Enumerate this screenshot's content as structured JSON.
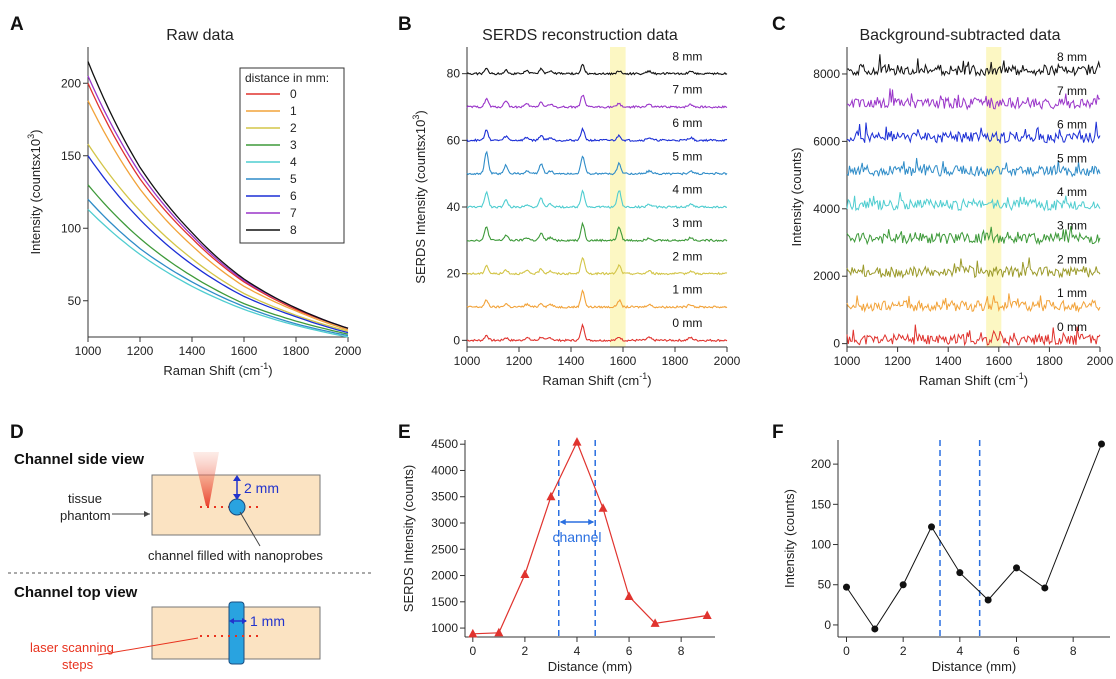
{
  "panels": {
    "A": {
      "letter": "A",
      "title": "Raw data"
    },
    "B": {
      "letter": "B",
      "title": "SERDS reconstruction data"
    },
    "C": {
      "letter": "C",
      "title": "Background-subtracted data"
    },
    "D": {
      "letter": "D"
    },
    "E": {
      "letter": "E"
    },
    "F": {
      "letter": "F"
    }
  },
  "diagram": {
    "side_view_title": "Channel side view",
    "top_view_title": "Channel top view",
    "depth_label": "2 mm",
    "width_label": "1 mm",
    "tissue_label_1": "tissue",
    "tissue_label_2": "phantom",
    "channel_label": "channel filled with nanoprobes",
    "laser_label_1": "laser scanning",
    "laser_label_2": "steps",
    "colors": {
      "phantom": "#fbe3c2",
      "channel": "#29a3e0",
      "laser": "#e8321e",
      "arrow": "#2233cc"
    }
  },
  "chart_data": [
    {
      "panel": "A",
      "type": "line",
      "title": "Raw data",
      "xlabel": "Raman Shift (cm",
      "xlabel_sup": "-1",
      "ylabel": "Intensity (countsx10",
      "ylabel_sup": "3",
      "xlim": [
        1000,
        2000
      ],
      "ylim": [
        25,
        225
      ],
      "xticks": [
        1000,
        1200,
        1400,
        1600,
        1800,
        2000
      ],
      "yticks": [
        50,
        100,
        150,
        200
      ],
      "legend_title": "distance in mm:",
      "legend_position": "top-right",
      "series": [
        {
          "name": "0",
          "color": "#e0332e",
          "x": [
            1000,
            1200,
            1400,
            1600,
            1800,
            2000
          ],
          "y": [
            200,
            134,
            93,
            63,
            44,
            31
          ]
        },
        {
          "name": "1",
          "color": "#f2a33a",
          "x": [
            1000,
            1200,
            1400,
            1600,
            1800,
            2000
          ],
          "y": [
            188,
            127,
            88,
            60,
            43,
            30
          ]
        },
        {
          "name": "2",
          "color": "#d3c548",
          "x": [
            1000,
            1200,
            1400,
            1600,
            1800,
            2000
          ],
          "y": [
            158,
            112,
            79,
            55,
            40,
            29
          ]
        },
        {
          "name": "3",
          "color": "#3e9a3a",
          "x": [
            1000,
            1200,
            1400,
            1600,
            1800,
            2000
          ],
          "y": [
            130,
            93,
            67,
            48,
            36,
            27
          ]
        },
        {
          "name": "4",
          "color": "#4fcdd0",
          "x": [
            1000,
            1200,
            1400,
            1600,
            1800,
            2000
          ],
          "y": [
            113,
            82,
            60,
            44,
            33,
            25
          ]
        },
        {
          "name": "5",
          "color": "#2f8cc8",
          "x": [
            1000,
            1200,
            1400,
            1600,
            1800,
            2000
          ],
          "y": [
            120,
            86,
            63,
            46,
            34,
            26
          ]
        },
        {
          "name": "6",
          "color": "#1c2fd6",
          "x": [
            1000,
            1200,
            1400,
            1600,
            1800,
            2000
          ],
          "y": [
            150,
            106,
            75,
            53,
            39,
            28
          ]
        },
        {
          "name": "7",
          "color": "#9a35c9",
          "x": [
            1000,
            1200,
            1400,
            1600,
            1800,
            2000
          ],
          "y": [
            205,
            138,
            95,
            64,
            45,
            31
          ]
        },
        {
          "name": "8",
          "color": "#111111",
          "x": [
            1000,
            1200,
            1400,
            1600,
            1800,
            2000
          ],
          "y": [
            215,
            142,
            97,
            65,
            45,
            31
          ]
        }
      ]
    },
    {
      "panel": "B",
      "type": "line",
      "title": "SERDS reconstruction data",
      "xlabel": "Raman Shift (cm",
      "xlabel_sup": "-1",
      "ylabel": "SERDS Intensity (countsx10",
      "ylabel_sup": "3",
      "xlim": [
        1000,
        2000
      ],
      "ylim": [
        -2,
        88
      ],
      "xticks": [
        1000,
        1200,
        1400,
        1600,
        1800,
        2000
      ],
      "yticks": [
        0,
        20,
        40,
        60,
        80
      ],
      "highlight_band": [
        1550,
        1610
      ],
      "peaks": [
        1075,
        1150,
        1285,
        1445,
        1585
      ],
      "series": [
        {
          "name": "0 mm",
          "color": "#e0332e",
          "offset": 0,
          "peak_heights": [
            1.5,
            0.8,
            1,
            4.5,
            1
          ]
        },
        {
          "name": "1 mm",
          "color": "#f2a33a",
          "offset": 10,
          "peak_heights": [
            2,
            1,
            1.2,
            5,
            2
          ]
        },
        {
          "name": "2 mm",
          "color": "#d3c548",
          "offset": 20,
          "peak_heights": [
            2.5,
            1.2,
            1.5,
            5,
            2.5
          ]
        },
        {
          "name": "3 mm",
          "color": "#3e9a3a",
          "offset": 30,
          "peak_heights": [
            4,
            1.5,
            2,
            5,
            4
          ]
        },
        {
          "name": "4 mm",
          "color": "#4fcdd0",
          "offset": 40,
          "peak_heights": [
            4.5,
            2,
            2.5,
            5,
            5
          ]
        },
        {
          "name": "5 mm",
          "color": "#2f8cc8",
          "offset": 50,
          "peak_heights": [
            6.5,
            2.5,
            3,
            5.5,
            3
          ]
        },
        {
          "name": "6 mm",
          "color": "#1c2fd6",
          "offset": 60,
          "peak_heights": [
            3,
            1.2,
            1.5,
            3.5,
            1.5
          ]
        },
        {
          "name": "7 mm",
          "color": "#9a35c9",
          "offset": 70,
          "peak_heights": [
            2.5,
            2,
            1.5,
            3.5,
            1
          ]
        },
        {
          "name": "8 mm",
          "color": "#111111",
          "offset": 80,
          "peak_heights": [
            1.5,
            1.2,
            1.5,
            2.5,
            0.8
          ]
        }
      ]
    },
    {
      "panel": "C",
      "type": "line",
      "title": "Background-subtracted data",
      "xlabel": "Raman Shift (cm",
      "xlabel_sup": "-1",
      "ylabel": "Intensity (counts)",
      "xlim": [
        1000,
        2000
      ],
      "ylim": [
        -100,
        8800
      ],
      "xticks": [
        1000,
        1200,
        1400,
        1600,
        1800,
        2000
      ],
      "yticks": [
        0,
        2000,
        4000,
        6000,
        8000
      ],
      "highlight_band": [
        1550,
        1610
      ],
      "series": [
        {
          "name": "0 mm",
          "color": "#e0332e",
          "offset": 0
        },
        {
          "name": "1 mm",
          "color": "#f2a33a",
          "offset": 1000
        },
        {
          "name": "2 mm",
          "color": "#9b9a2a",
          "offset": 2000
        },
        {
          "name": "3 mm",
          "color": "#3e9a3a",
          "offset": 3000
        },
        {
          "name": "4 mm",
          "color": "#4fcdd0",
          "offset": 4000
        },
        {
          "name": "5 mm",
          "color": "#2f8cc8",
          "offset": 5000
        },
        {
          "name": "6 mm",
          "color": "#1c2fd6",
          "offset": 6000
        },
        {
          "name": "7 mm",
          "color": "#9a35c9",
          "offset": 7000
        },
        {
          "name": "8 mm",
          "color": "#111111",
          "offset": 8000
        }
      ]
    },
    {
      "panel": "E",
      "type": "line",
      "xlabel": "Distance (mm)",
      "ylabel": "SERDS Intensity (counts)",
      "xlim": [
        -0.3,
        9.3
      ],
      "ylim": [
        830,
        4580
      ],
      "xticks": [
        0,
        2,
        4,
        6,
        8
      ],
      "yticks": [
        1000,
        1500,
        2000,
        2500,
        3000,
        3500,
        4000,
        4500
      ],
      "vlines": [
        3.3,
        4.7
      ],
      "annotation": "channel",
      "series": [
        {
          "color": "#e0332e",
          "marker": "triangle",
          "x": [
            0,
            1,
            2,
            3,
            4,
            5,
            6,
            7,
            9
          ],
          "y": [
            890,
            910,
            2020,
            3500,
            4540,
            3280,
            1600,
            1090,
            1240
          ]
        }
      ]
    },
    {
      "panel": "F",
      "type": "line",
      "xlabel": "Distance (mm)",
      "ylabel": "Intensity (counts)",
      "xlim": [
        -0.3,
        9.3
      ],
      "ylim": [
        -15,
        230
      ],
      "xticks": [
        0,
        2,
        4,
        6,
        8
      ],
      "yticks": [
        0,
        50,
        100,
        150,
        200
      ],
      "vlines": [
        3.3,
        4.7
      ],
      "series": [
        {
          "color": "#111111",
          "marker": "circle",
          "x": [
            0,
            1,
            2,
            3,
            4,
            5,
            6,
            7,
            9
          ],
          "y": [
            47,
            -5,
            50,
            122,
            65,
            31,
            71,
            46,
            225
          ]
        }
      ]
    }
  ]
}
